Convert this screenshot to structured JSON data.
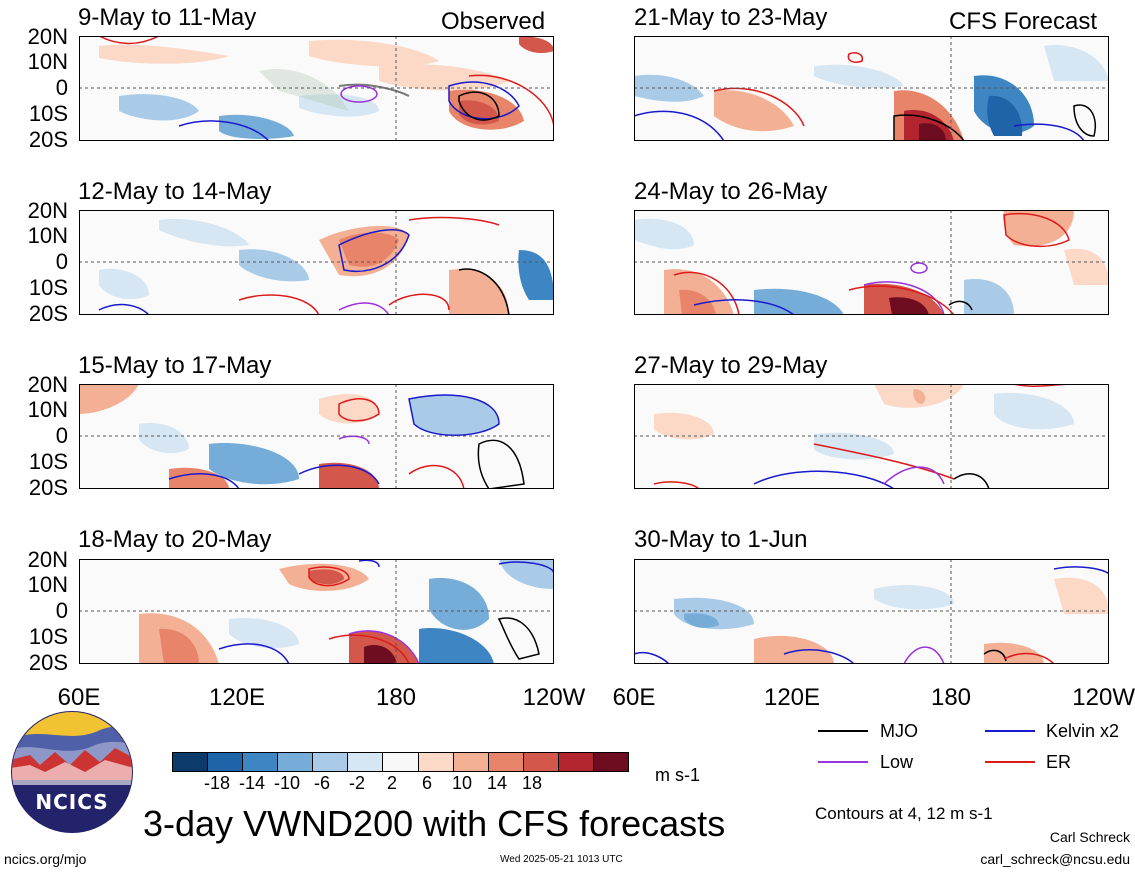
{
  "header": {
    "observed_label": "Observed",
    "forecast_label": "CFS Forecast"
  },
  "panels": [
    {
      "title": "9-May to 11-May"
    },
    {
      "title": "12-May to 14-May"
    },
    {
      "title": "15-May to 17-May"
    },
    {
      "title": "18-May to 20-May"
    },
    {
      "title": "21-May to 23-May"
    },
    {
      "title": "24-May to 26-May"
    },
    {
      "title": "27-May to 29-May"
    },
    {
      "title": "30-May to 1-Jun"
    }
  ],
  "lat_labels": [
    "20N",
    "10N",
    "0",
    "10S",
    "20S"
  ],
  "lon_labels": [
    "60E",
    "120E",
    "180",
    "120W"
  ],
  "colorbar": {
    "ticks": [
      "-18",
      "-14",
      "-10",
      "-6",
      "-2",
      "2",
      "6",
      "10",
      "14",
      "18"
    ],
    "units": "m s-1",
    "colors": [
      "#0b3a6b",
      "#1f63a8",
      "#3d86c3",
      "#76acd8",
      "#aacbe7",
      "#d7e6f3",
      "#f8f8f8",
      "#fbd9c6",
      "#f4b094",
      "#e7846a",
      "#d3574a",
      "#b2242e",
      "#6e0d1f"
    ]
  },
  "legend": {
    "items": [
      {
        "label": "MJO",
        "color": "#000000"
      },
      {
        "label": "Kelvin x2",
        "color": "#1a1acc"
      },
      {
        "label": "Low",
        "color": "#9933dd"
      },
      {
        "label": "ER",
        "color": "#dd1a1a"
      }
    ],
    "contours_note": "Contours at 4, 12 m s-1"
  },
  "title": "3-day VWND200 with CFS forecasts",
  "logo_text": "NCICS",
  "footer": {
    "url": "ncics.org/mjo",
    "timestamp": "Wed 2025-05-21 1013 UTC",
    "author": "Carl Schreck",
    "email": "carl_schreck@ncsu.edu"
  }
}
